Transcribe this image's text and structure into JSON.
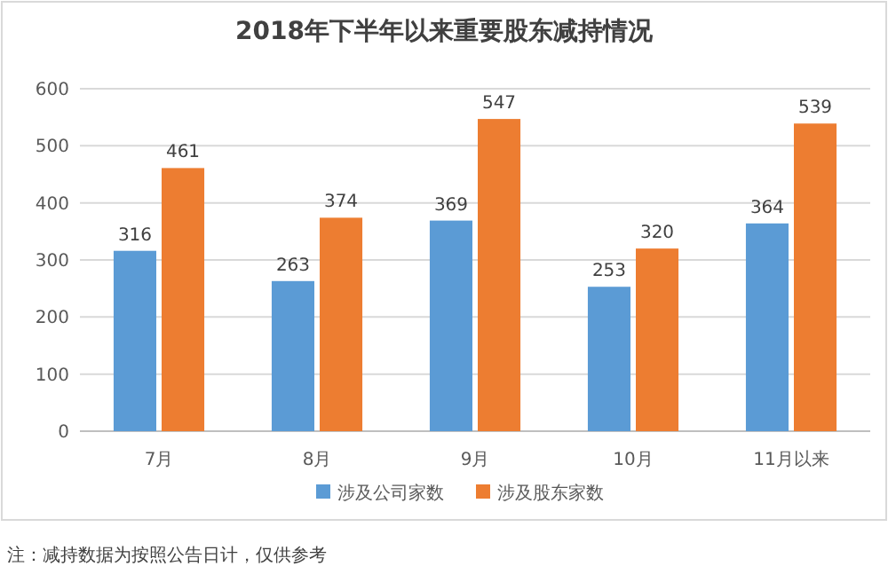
{
  "chart_data": {
    "type": "bar",
    "title": "2018年下半年以来重要股东减持情况",
    "categories": [
      "7月",
      "8月",
      "9月",
      "10月",
      "11月以来"
    ],
    "series": [
      {
        "name": "涉及公司家数",
        "color": "#5b9bd5",
        "values": [
          316,
          263,
          369,
          253,
          364
        ]
      },
      {
        "name": "涉及股东家数",
        "color": "#ed7d31",
        "values": [
          461,
          374,
          547,
          320,
          539
        ]
      }
    ],
    "ylim": [
      0,
      600
    ],
    "yticks": [
      0,
      100,
      200,
      300,
      400,
      500,
      600
    ],
    "grid": "y",
    "legend": "bottom",
    "data_labels": true,
    "annotations": [
      "注：减持数据为按照公告日计，仅供参考"
    ]
  }
}
